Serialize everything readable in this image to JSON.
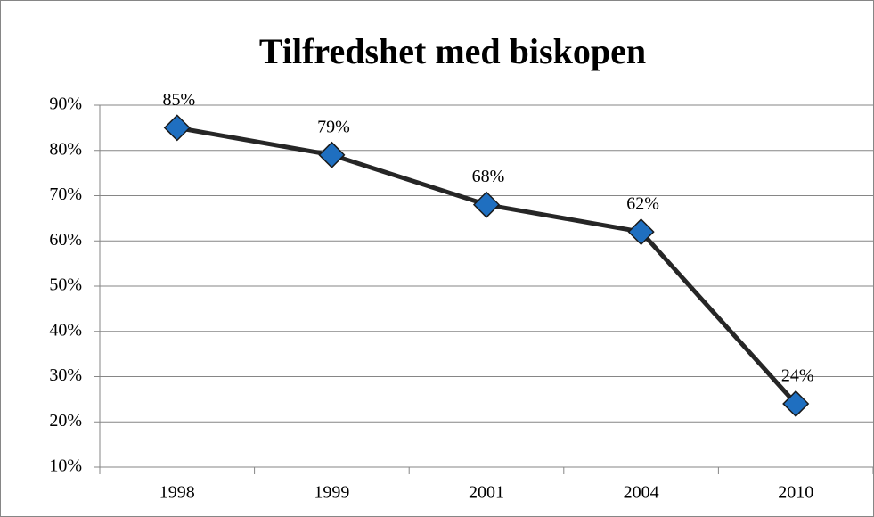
{
  "chart_data": {
    "type": "line",
    "title": "Tilfredshet med biskopen",
    "categories": [
      "1998",
      "1999",
      "2001",
      "2004",
      "2010"
    ],
    "series": [
      {
        "name": "Tilfredshet",
        "color": "#1f6fc0",
        "values": [
          85,
          79,
          68,
          62,
          24
        ],
        "value_labels": [
          "85%",
          "79%",
          "68%",
          "62%",
          "24%"
        ]
      }
    ],
    "ylim": [
      10,
      90
    ],
    "yticks": [
      {
        "value": 10,
        "label": "10%"
      },
      {
        "value": 20,
        "label": "20%"
      },
      {
        "value": 30,
        "label": "30%"
      },
      {
        "value": 40,
        "label": "40%"
      },
      {
        "value": 50,
        "label": "50%"
      },
      {
        "value": 60,
        "label": "60%"
      },
      {
        "value": 70,
        "label": "70%"
      },
      {
        "value": 80,
        "label": "80%"
      },
      {
        "value": 90,
        "label": "90%"
      }
    ],
    "grid": true
  }
}
